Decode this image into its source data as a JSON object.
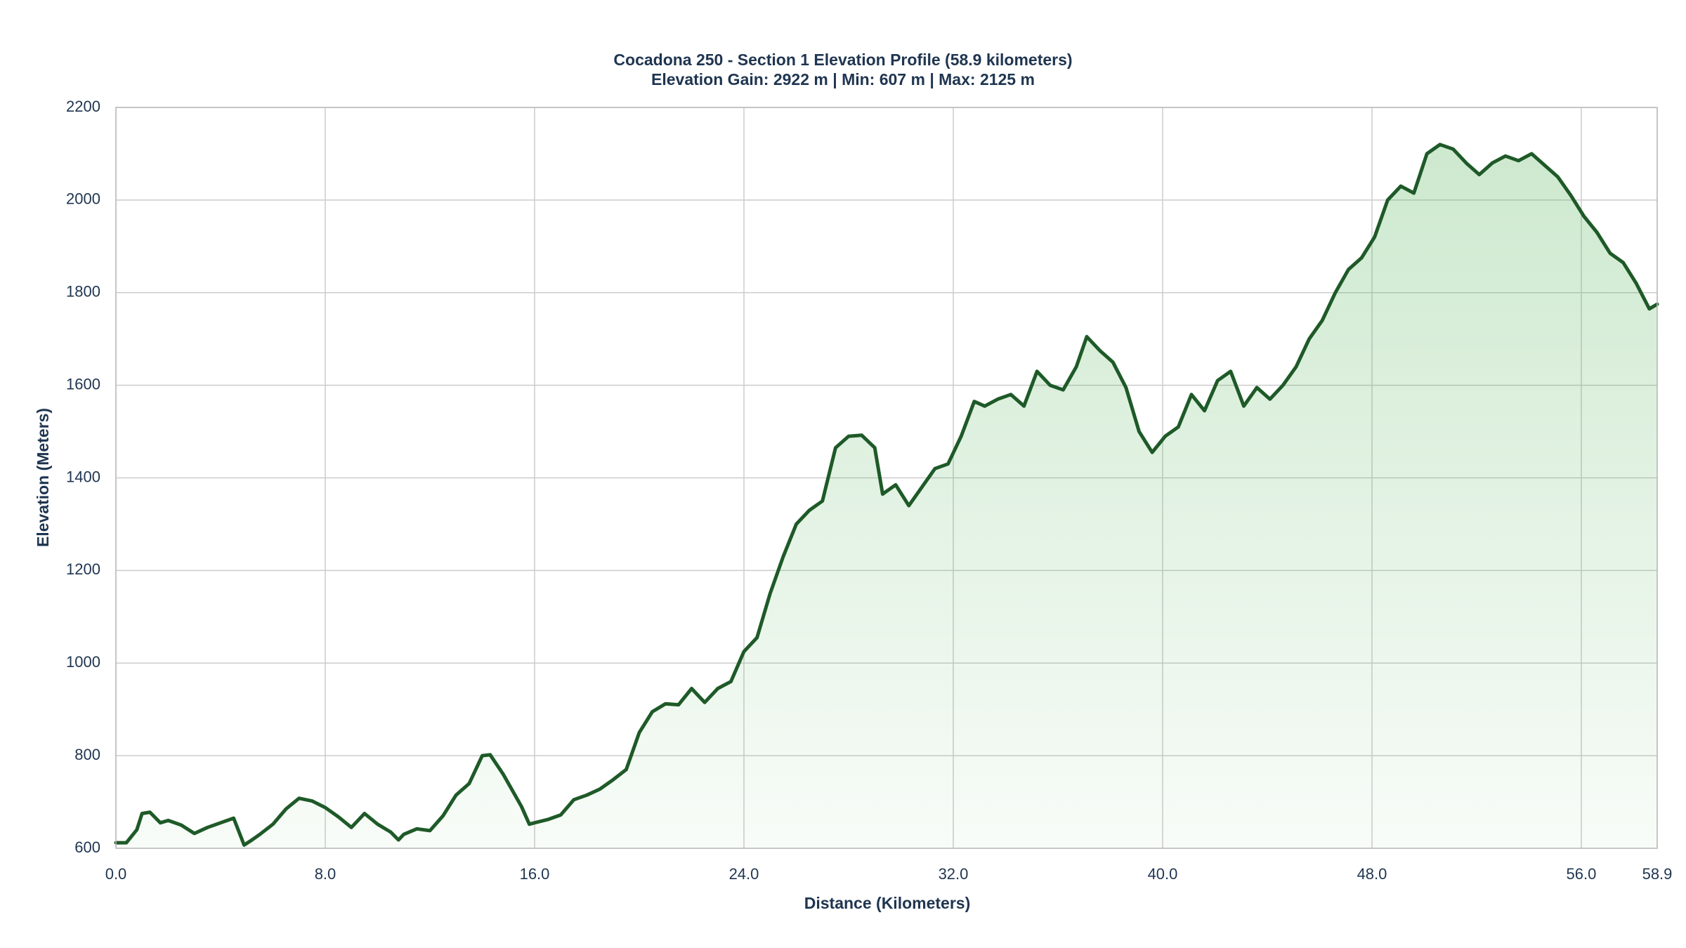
{
  "chart_data": {
    "type": "area",
    "title": "Cocadona 250 - Section 1 Elevation Profile (58.9 kilometers)",
    "subtitle": "Elevation Gain: 2922 m | Min: 607 m | Max: 2125 m",
    "x_label": "Distance (Kilometers)",
    "y_label": "Elevation (Meters)",
    "x": [
      0,
      0.4,
      0.8,
      1.0,
      1.3,
      1.7,
      2.0,
      2.5,
      3.0,
      3.5,
      4.0,
      4.5,
      4.9,
      5.2,
      5.5,
      6.0,
      6.5,
      7.0,
      7.5,
      8.0,
      8.5,
      9.0,
      9.5,
      10.0,
      10.5,
      10.8,
      11.0,
      11.5,
      12.0,
      12.5,
      13.0,
      13.5,
      14.0,
      14.3,
      14.8,
      15.5,
      15.8,
      16.0,
      16.5,
      17.0,
      17.5,
      18.0,
      18.5,
      19.0,
      19.5,
      20.0,
      20.5,
      21.0,
      21.5,
      22.0,
      22.5,
      23.0,
      23.5,
      24.0,
      24.5,
      25.0,
      25.5,
      26.0,
      26.5,
      27.0,
      27.5,
      28.0,
      28.5,
      29.0,
      29.3,
      29.8,
      30.3,
      30.8,
      31.3,
      31.8,
      32.3,
      32.8,
      33.2,
      33.7,
      34.2,
      34.7,
      35.2,
      35.7,
      36.2,
      36.7,
      37.1,
      37.6,
      38.1,
      38.6,
      39.1,
      39.6,
      40.1,
      40.6,
      41.1,
      41.6,
      42.1,
      42.6,
      43.1,
      43.6,
      44.1,
      44.6,
      45.1,
      45.6,
      46.1,
      46.6,
      47.1,
      47.6,
      48.1,
      48.6,
      49.1,
      49.6,
      50.1,
      50.6,
      51.1,
      51.6,
      52.1,
      52.6,
      53.1,
      53.6,
      54.1,
      54.6,
      55.1,
      55.6,
      56.1,
      56.6,
      57.1,
      57.6,
      58.1,
      58.6,
      58.9
    ],
    "values": [
      612,
      612,
      640,
      675,
      678,
      655,
      660,
      650,
      632,
      645,
      655,
      665,
      607,
      618,
      630,
      652,
      685,
      708,
      702,
      688,
      668,
      645,
      675,
      652,
      635,
      618,
      630,
      642,
      638,
      670,
      715,
      740,
      800,
      802,
      760,
      690,
      652,
      655,
      662,
      672,
      705,
      715,
      728,
      748,
      770,
      850,
      895,
      912,
      910,
      945,
      915,
      945,
      960,
      1025,
      1055,
      1150,
      1230,
      1300,
      1330,
      1350,
      1465,
      1490,
      1492,
      1465,
      1365,
      1385,
      1340,
      1380,
      1420,
      1430,
      1490,
      1565,
      1555,
      1570,
      1580,
      1555,
      1630,
      1600,
      1590,
      1640,
      1705,
      1675,
      1650,
      1595,
      1500,
      1455,
      1490,
      1510,
      1580,
      1545,
      1610,
      1630,
      1555,
      1595,
      1570,
      1600,
      1640,
      1700,
      1740,
      1800,
      1850,
      1875,
      1920,
      2000,
      2030,
      2015,
      2100,
      2120,
      2110,
      2080,
      2055,
      2080,
      2095,
      2085,
      2100,
      2075,
      2050,
      2010,
      1965,
      1930,
      1885,
      1865,
      1820,
      1765,
      1775
    ],
    "color": "#1e5a28",
    "fill_color": "#4caf50",
    "xlim": [
      0,
      58.9
    ],
    "ylim": [
      600,
      2200
    ],
    "xticks": [
      {
        "value": 0,
        "label": "0.0"
      },
      {
        "value": 8,
        "label": "8.0"
      },
      {
        "value": 16,
        "label": "16.0"
      },
      {
        "value": 24,
        "label": "24.0"
      },
      {
        "value": 32,
        "label": "32.0"
      },
      {
        "value": 40,
        "label": "40.0"
      },
      {
        "value": 48,
        "label": "48.0"
      },
      {
        "value": 56,
        "label": "56.0"
      },
      58.9
    ],
    "yticks": [
      600,
      800,
      1000,
      1200,
      1400,
      1600,
      1800,
      2000,
      2200
    ],
    "grid": true
  }
}
